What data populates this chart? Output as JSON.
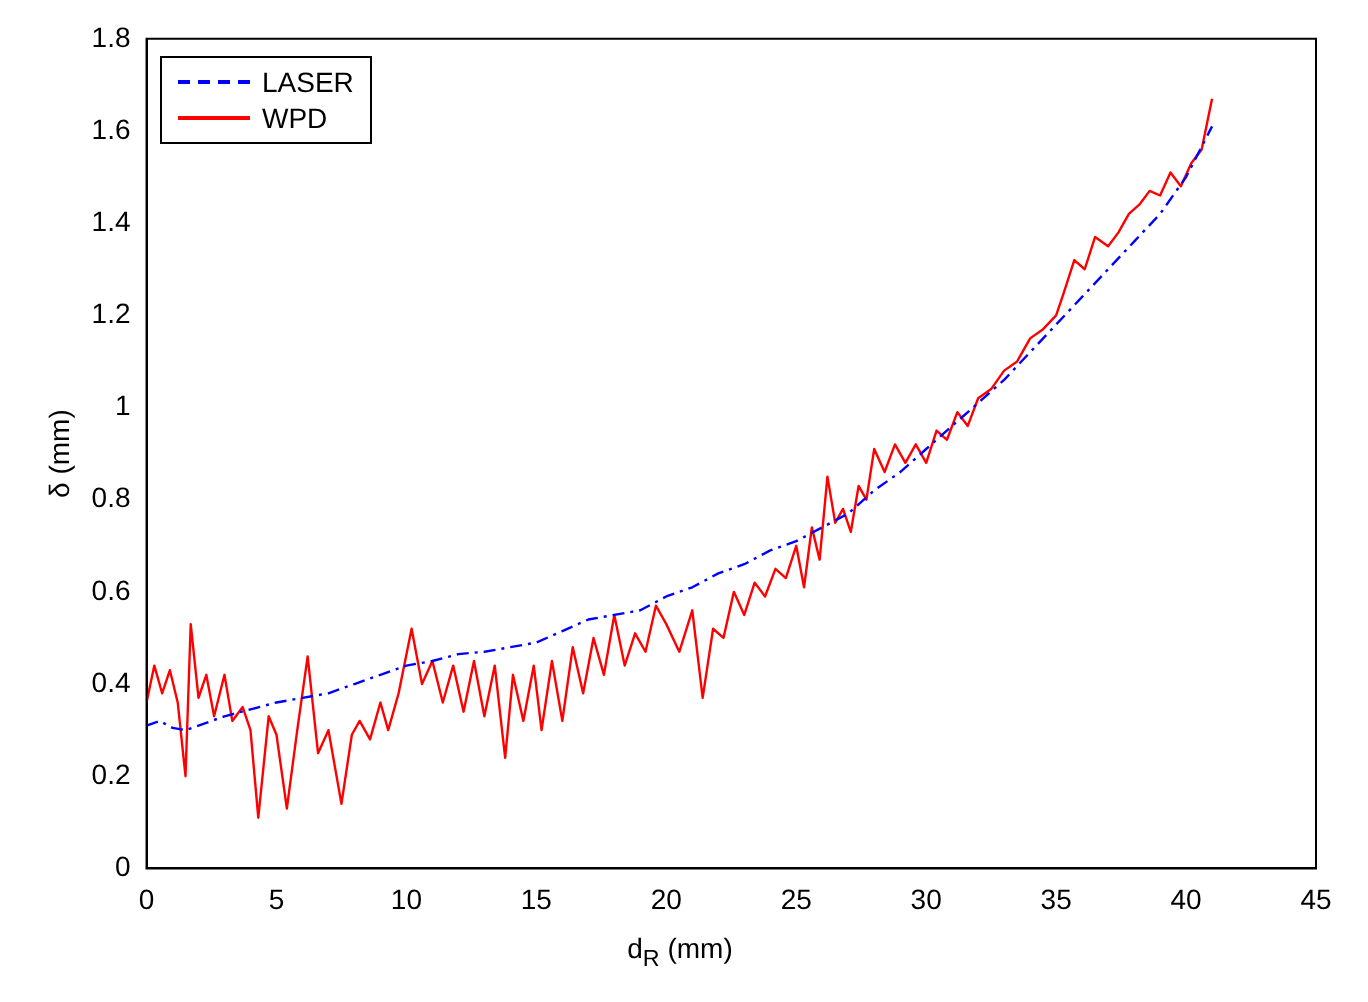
{
  "chart_data": {
    "type": "line",
    "xlabel": "d$_{R}$ (mm)",
    "ylabel": "δ (mm)",
    "xlim": [
      0,
      45
    ],
    "xticks": [
      0,
      5,
      10,
      15,
      20,
      25,
      30,
      35,
      40,
      45
    ],
    "ylim": [
      0,
      1.8
    ],
    "yticks": [
      0,
      0.2,
      0.4,
      0.6,
      0.8,
      1,
      1.2,
      1.4,
      1.6,
      1.8
    ],
    "grid": false,
    "legend": "top left",
    "marker": "none",
    "series": [
      {
        "name": "LASER",
        "color": "#0000ff",
        "line_style": "dashed",
        "x": [
          0,
          0.5,
          1,
          1.5,
          2,
          3,
          4,
          5,
          6,
          7,
          8,
          9,
          10,
          11,
          12,
          13,
          14,
          15,
          16,
          17,
          18,
          19,
          20,
          21,
          22,
          23,
          24,
          25,
          26,
          27,
          28,
          29,
          30,
          31,
          32,
          33,
          34,
          35,
          36,
          37,
          38,
          39,
          40,
          41
        ],
        "values": [
          0.31,
          0.32,
          0.305,
          0.3,
          0.31,
          0.33,
          0.345,
          0.36,
          0.37,
          0.38,
          0.4,
          0.42,
          0.44,
          0.45,
          0.465,
          0.47,
          0.48,
          0.49,
          0.515,
          0.54,
          0.55,
          0.56,
          0.59,
          0.61,
          0.64,
          0.66,
          0.69,
          0.71,
          0.74,
          0.77,
          0.82,
          0.86,
          0.91,
          0.96,
          1.01,
          1.06,
          1.12,
          1.18,
          1.24,
          1.3,
          1.36,
          1.42,
          1.5,
          1.61
        ]
      },
      {
        "name": "WPD",
        "color": "#ff0000",
        "line_style": "solid",
        "x": [
          0,
          0.3,
          0.6,
          0.9,
          1.2,
          1.5,
          1.7,
          2.0,
          2.3,
          2.6,
          3.0,
          3.3,
          3.7,
          4.0,
          4.3,
          4.7,
          5.0,
          5.4,
          5.8,
          6.2,
          6.6,
          7.0,
          7.5,
          7.9,
          8.2,
          8.6,
          9.0,
          9.3,
          9.7,
          10.2,
          10.6,
          11.0,
          11.4,
          11.8,
          12.2,
          12.6,
          13.0,
          13.4,
          13.8,
          14.1,
          14.5,
          14.9,
          15.2,
          15.6,
          16.0,
          16.4,
          16.8,
          17.2,
          17.6,
          18.0,
          18.4,
          18.8,
          19.2,
          19.6,
          20.0,
          20.5,
          21.0,
          21.4,
          21.8,
          22.2,
          22.6,
          23.0,
          23.4,
          23.8,
          24.2,
          24.6,
          25.0,
          25.3,
          25.6,
          25.9,
          26.2,
          26.5,
          26.8,
          27.1,
          27.4,
          27.7,
          28.0,
          28.4,
          28.8,
          29.2,
          29.6,
          30.0,
          30.4,
          30.8,
          31.2,
          31.6,
          32.0,
          32.5,
          33.0,
          33.5,
          34.0,
          34.5,
          35.0,
          35.3,
          35.7,
          36.1,
          36.5,
          37.0,
          37.4,
          37.8,
          38.2,
          38.6,
          39.0,
          39.4,
          39.8,
          40.2,
          40.6,
          41.0
        ],
        "values": [
          0.36,
          0.44,
          0.38,
          0.43,
          0.36,
          0.2,
          0.53,
          0.37,
          0.42,
          0.33,
          0.42,
          0.32,
          0.35,
          0.3,
          0.11,
          0.33,
          0.29,
          0.13,
          0.3,
          0.46,
          0.25,
          0.3,
          0.14,
          0.29,
          0.32,
          0.28,
          0.36,
          0.3,
          0.38,
          0.52,
          0.4,
          0.45,
          0.36,
          0.44,
          0.34,
          0.45,
          0.33,
          0.44,
          0.24,
          0.42,
          0.32,
          0.44,
          0.3,
          0.45,
          0.32,
          0.48,
          0.38,
          0.5,
          0.42,
          0.55,
          0.44,
          0.51,
          0.47,
          0.57,
          0.53,
          0.47,
          0.56,
          0.37,
          0.52,
          0.5,
          0.6,
          0.55,
          0.62,
          0.59,
          0.65,
          0.63,
          0.7,
          0.61,
          0.74,
          0.67,
          0.85,
          0.75,
          0.78,
          0.73,
          0.83,
          0.8,
          0.91,
          0.86,
          0.92,
          0.88,
          0.92,
          0.88,
          0.95,
          0.93,
          0.99,
          0.96,
          1.02,
          1.04,
          1.08,
          1.1,
          1.15,
          1.17,
          1.2,
          1.25,
          1.32,
          1.3,
          1.37,
          1.35,
          1.38,
          1.42,
          1.44,
          1.47,
          1.46,
          1.51,
          1.48,
          1.53,
          1.56,
          1.67
        ]
      }
    ]
  }
}
